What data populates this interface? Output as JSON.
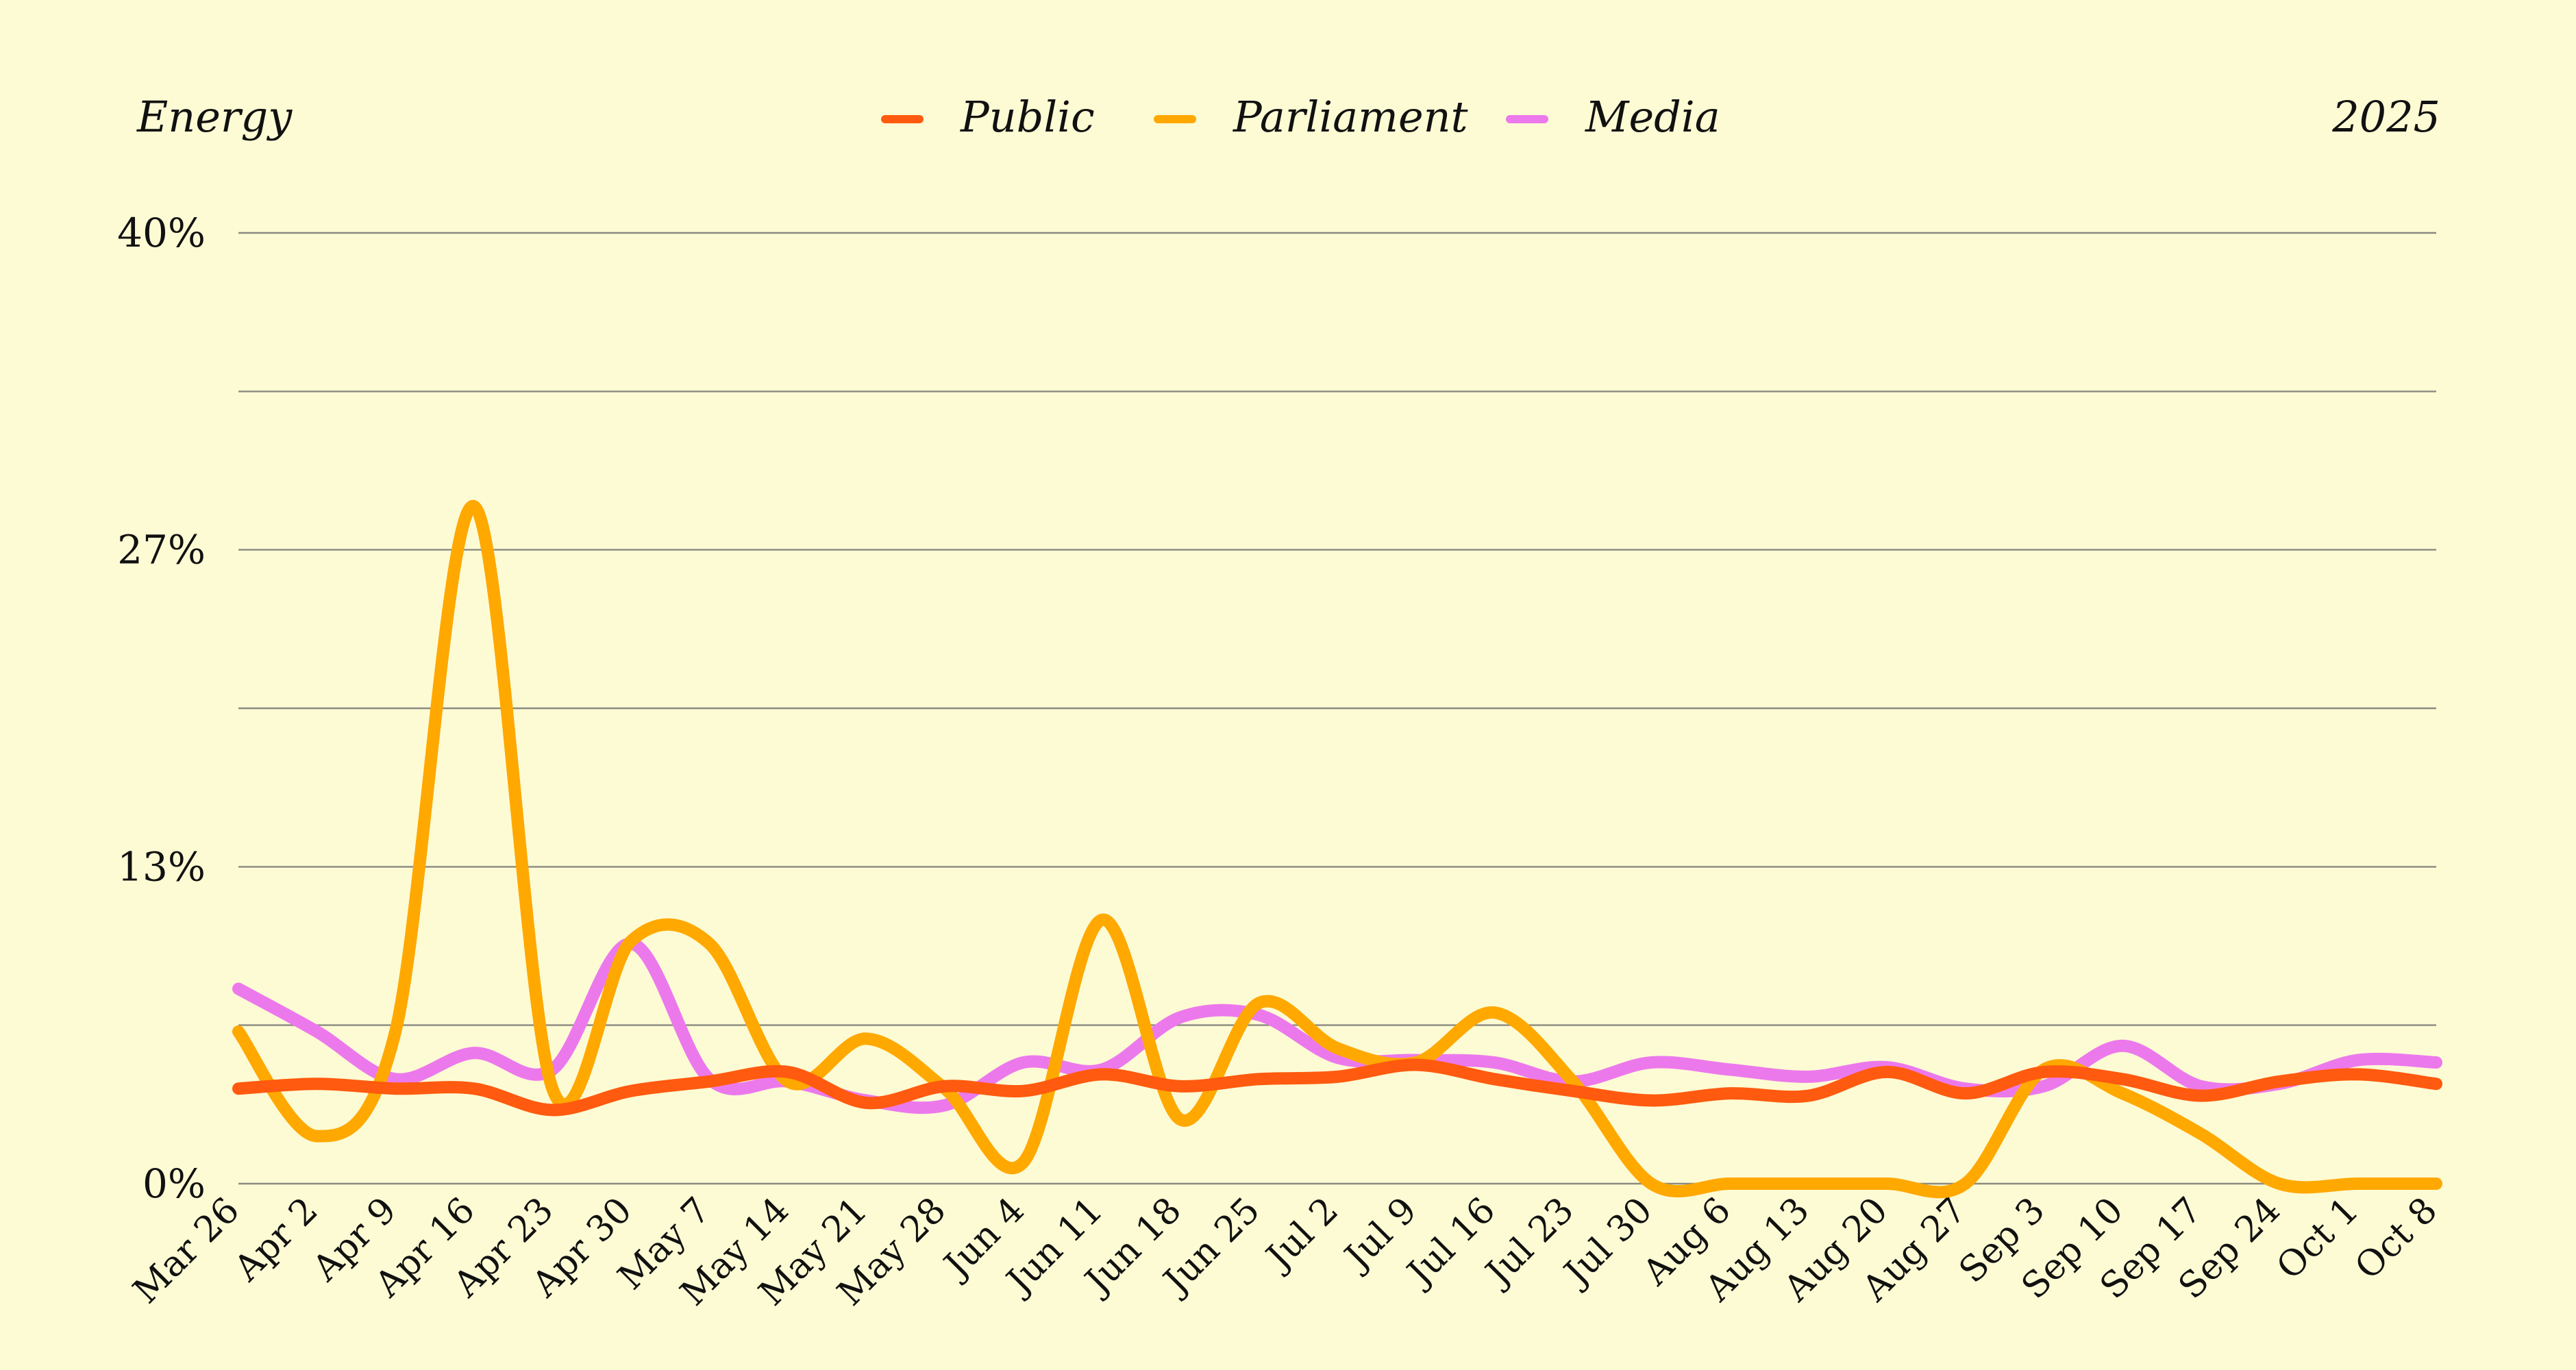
{
  "chart_data": {
    "type": "line",
    "title": "Energy",
    "year_label": "2025",
    "xlabel": "",
    "ylabel": "",
    "categories": [
      "Mar 26",
      "Apr 2",
      "Apr 9",
      "Apr 16",
      "Apr 23",
      "Apr 30",
      "May 7",
      "May 14",
      "May 21",
      "May 28",
      "Jun 4",
      "Jun 11",
      "Jun 18",
      "Jun 25",
      "Jul 2",
      "Jul 9",
      "Jul 16",
      "Jul 23",
      "Jul 30",
      "Aug 6",
      "Aug 13",
      "Aug 20",
      "Aug 27",
      "Sep 3",
      "Sep 10",
      "Sep 17",
      "Sep 24",
      "Oct 1",
      "Oct 8"
    ],
    "ylim": [
      0,
      40
    ],
    "yticks": [
      0,
      6.67,
      13.33,
      20,
      26.67,
      33.33,
      40
    ],
    "ytick_labels": [
      "0%",
      "",
      "13%",
      "",
      "27%",
      "",
      "40%"
    ],
    "grid": true,
    "legend_position": "top-center",
    "series": [
      {
        "name": "Public",
        "color": "#ff5a0f",
        "values": [
          4.0,
          4.2,
          4.0,
          4.0,
          3.1,
          3.9,
          4.3,
          4.7,
          3.4,
          4.1,
          3.9,
          4.6,
          4.1,
          4.4,
          4.5,
          5.0,
          4.4,
          3.9,
          3.5,
          3.8,
          3.7,
          4.7,
          3.8,
          4.7,
          4.4,
          3.7,
          4.3,
          4.6,
          4.2
        ]
      },
      {
        "name": "Parliament",
        "color": "#ffa800",
        "values": [
          6.4,
          2.0,
          6.4,
          28.5,
          4.0,
          10.2,
          10.1,
          4.3,
          6.1,
          4.0,
          0.9,
          11.1,
          2.7,
          7.6,
          5.7,
          5.1,
          7.2,
          4.3,
          0.0,
          0.0,
          0.0,
          0.0,
          0.0,
          4.8,
          3.8,
          2.1,
          0.0,
          0.0,
          0.0
        ]
      },
      {
        "name": "Media",
        "color": "#ec79ec",
        "values": [
          8.2,
          6.4,
          4.4,
          5.5,
          4.8,
          10.1,
          4.4,
          4.3,
          3.5,
          3.3,
          5.1,
          4.8,
          7.0,
          7.1,
          5.3,
          5.2,
          5.1,
          4.3,
          5.1,
          4.8,
          4.5,
          4.9,
          4.0,
          4.1,
          5.8,
          4.1,
          4.2,
          5.2,
          5.1
        ]
      }
    ]
  }
}
